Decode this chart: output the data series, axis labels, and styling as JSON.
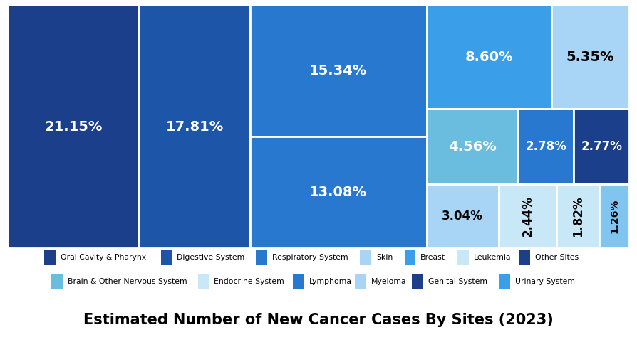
{
  "title": "Estimated Number of New Cancer Cases By Sites (2023)",
  "rects": [
    {
      "pct": "21.15%",
      "color": "#1c3f8c",
      "tc": "#ffffff",
      "rot": 0
    },
    {
      "pct": "17.81%",
      "color": "#1d55a8",
      "tc": "#ffffff",
      "rot": 0
    },
    {
      "pct": "15.34%",
      "color": "#2878d0",
      "tc": "#ffffff",
      "rot": 0
    },
    {
      "pct": "13.08%",
      "color": "#2878d0",
      "tc": "#ffffff",
      "rot": 0
    },
    {
      "pct": "8.60%",
      "color": "#3b9ee8",
      "tc": "#ffffff",
      "rot": 0
    },
    {
      "pct": "5.35%",
      "color": "#a8d4f5",
      "tc": "#000000",
      "rot": 0
    },
    {
      "pct": "4.56%",
      "color": "#6bbde0",
      "tc": "#ffffff",
      "rot": 0
    },
    {
      "pct": "2.78%",
      "color": "#2878d0",
      "tc": "#ffffff",
      "rot": 0
    },
    {
      "pct": "2.77%",
      "color": "#1c3f8c",
      "tc": "#ffffff",
      "rot": 0
    },
    {
      "pct": "3.04%",
      "color": "#a8d4f5",
      "tc": "#000000",
      "rot": 0
    },
    {
      "pct": "2.44%",
      "color": "#c8e8f8",
      "tc": "#000000",
      "rot": 90
    },
    {
      "pct": "1.82%",
      "color": "#c8e8f8",
      "tc": "#000000",
      "rot": 90
    },
    {
      "pct": "1.26%",
      "color": "#82c4f0",
      "tc": "#000000",
      "rot": 90
    }
  ],
  "legend_row1": [
    {
      "label": "Oral Cavity & Pharynx",
      "color": "#1c3f8c"
    },
    {
      "label": "Digestive System",
      "color": "#1d55a8"
    },
    {
      "label": "Respiratory System",
      "color": "#2878d0"
    },
    {
      "label": "Skin",
      "color": "#a8d4f5"
    },
    {
      "label": "Breast",
      "color": "#3b9ee8"
    },
    {
      "label": "Leukemia",
      "color": "#c8e8f8"
    },
    {
      "label": "Other Sites",
      "color": "#1c3f8c"
    }
  ],
  "legend_row2": [
    {
      "label": "Brain & Other Nervous System",
      "color": "#6bbde0"
    },
    {
      "label": "Endocrine System",
      "color": "#c8e8f8"
    },
    {
      "label": "Lymphoma",
      "color": "#2878d0"
    },
    {
      "label": "Myeloma",
      "color": "#a8d4f5"
    },
    {
      "label": "Genital System",
      "color": "#1c3f8c"
    },
    {
      "label": "Urinary System",
      "color": "#3b9ee8"
    }
  ]
}
